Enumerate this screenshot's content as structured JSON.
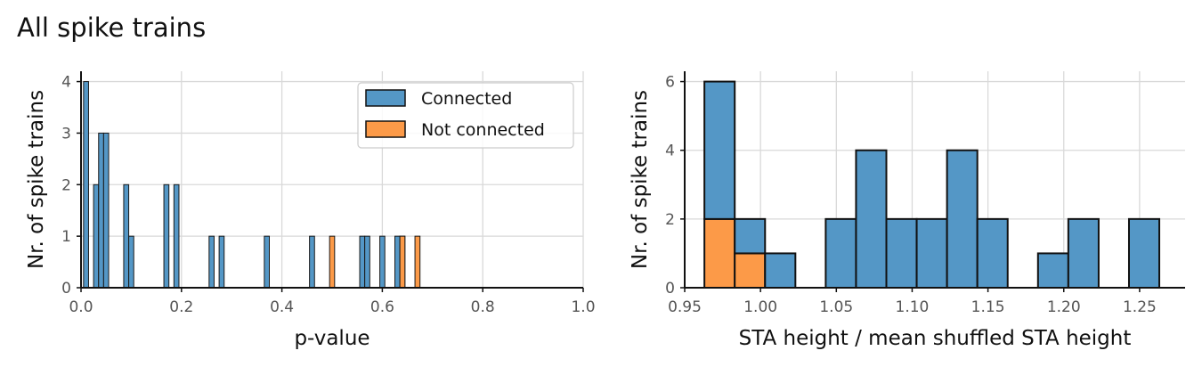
{
  "figure": {
    "title": "All spike trains"
  },
  "colors": {
    "connected": "#5497c6",
    "not_connected": "#fc9a48",
    "grid": "#d9d9d9"
  },
  "chart_data": [
    {
      "type": "bar",
      "kind": "histogram",
      "xlabel": "p-value",
      "ylabel": "Nr. of spike trains",
      "xlim": [
        0.0,
        1.0
      ],
      "ylim": [
        0,
        4.2
      ],
      "xticks": [
        "0.0",
        "0.2",
        "0.4",
        "0.6",
        "0.8",
        "1.0"
      ],
      "yticks": [
        "0",
        "1",
        "2",
        "3",
        "4"
      ],
      "bin_width": 0.01,
      "grid": true,
      "legend": {
        "placement": "top-right",
        "entries": [
          "Connected",
          "Not connected"
        ]
      },
      "series": [
        {
          "name": "Connected",
          "bins": [
            0.01,
            0.03,
            0.04,
            0.05,
            0.09,
            0.1,
            0.17,
            0.19,
            0.26,
            0.28,
            0.37,
            0.46,
            0.56,
            0.57,
            0.6,
            0.63,
            0.64
          ],
          "values": [
            4,
            2,
            3,
            3,
            2,
            1,
            2,
            2,
            1,
            1,
            1,
            1,
            1,
            1,
            1,
            1,
            1
          ]
        },
        {
          "name": "Not connected",
          "bins": [
            0.5,
            0.64,
            0.67
          ],
          "values": [
            1,
            1,
            1
          ]
        }
      ]
    },
    {
      "type": "bar",
      "kind": "histogram",
      "xlabel": "STA height / mean shuffled STA height",
      "ylabel": "Nr. of spike trains",
      "xlim": [
        0.95,
        1.28
      ],
      "ylim": [
        0,
        6.3
      ],
      "xticks": [
        "0.95",
        "1.00",
        "1.05",
        "1.10",
        "1.15",
        "1.20",
        "1.25"
      ],
      "yticks": [
        "0",
        "2",
        "4",
        "6"
      ],
      "bin_width": 0.02,
      "grid": true,
      "stacked": true,
      "series": [
        {
          "name": "Not connected",
          "bins": [
            0.963,
            0.983
          ],
          "values": [
            2,
            1
          ]
        },
        {
          "name": "Connected",
          "bins": [
            0.963,
            0.983,
            1.003,
            1.043,
            1.063,
            1.083,
            1.103,
            1.123,
            1.143,
            1.183,
            1.203,
            1.243
          ],
          "values": [
            4,
            1,
            1,
            2,
            4,
            2,
            2,
            4,
            2,
            1,
            2,
            2
          ]
        }
      ]
    }
  ]
}
